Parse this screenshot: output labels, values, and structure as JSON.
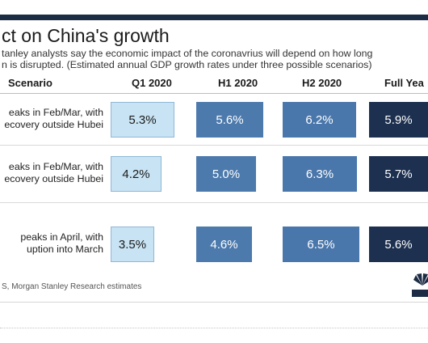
{
  "title": "ct on China's growth",
  "subtitle_lines": [
    "tanley analysts say the economic impact of the coronavrius will depend on how long",
    "n is disrupted. (Estimated annual GDP growth rates under three possible scenarios)"
  ],
  "source": "S, Morgan Stanley Research estimates",
  "colors": {
    "topbar": "#1c2c44",
    "q1": "#c8e3f3",
    "h1": "#4d7aad",
    "h2": "#4a77ab",
    "full_year": "#1d3050"
  },
  "chart_data": {
    "type": "table",
    "title": "ct on China's growth",
    "columns": [
      "Scenario",
      "Q1 2020",
      "H1 2020",
      "H2 2020",
      "Full Yea"
    ],
    "rows": [
      {
        "scenario_lines": [
          "eaks in Feb/Mar, with",
          "ecovery outside Hubei"
        ],
        "values": [
          5.3,
          5.6,
          6.2,
          5.9
        ],
        "labels": [
          "5.3%",
          "5.6%",
          "6.2%",
          "5.9%"
        ]
      },
      {
        "scenario_lines": [
          "eaks in Feb/Mar, with",
          "ecovery outside Hubei"
        ],
        "values": [
          4.2,
          5.0,
          6.3,
          5.7
        ],
        "labels": [
          "4.2%",
          "5.0%",
          "6.3%",
          "5.7%"
        ]
      },
      {
        "scenario_lines": [
          "peaks in April, with",
          "uption into March"
        ],
        "values": [
          3.5,
          4.6,
          6.5,
          5.6
        ],
        "labels": [
          "3.5%",
          "4.6%",
          "6.5%",
          "5.6%"
        ]
      }
    ],
    "units": "%"
  }
}
